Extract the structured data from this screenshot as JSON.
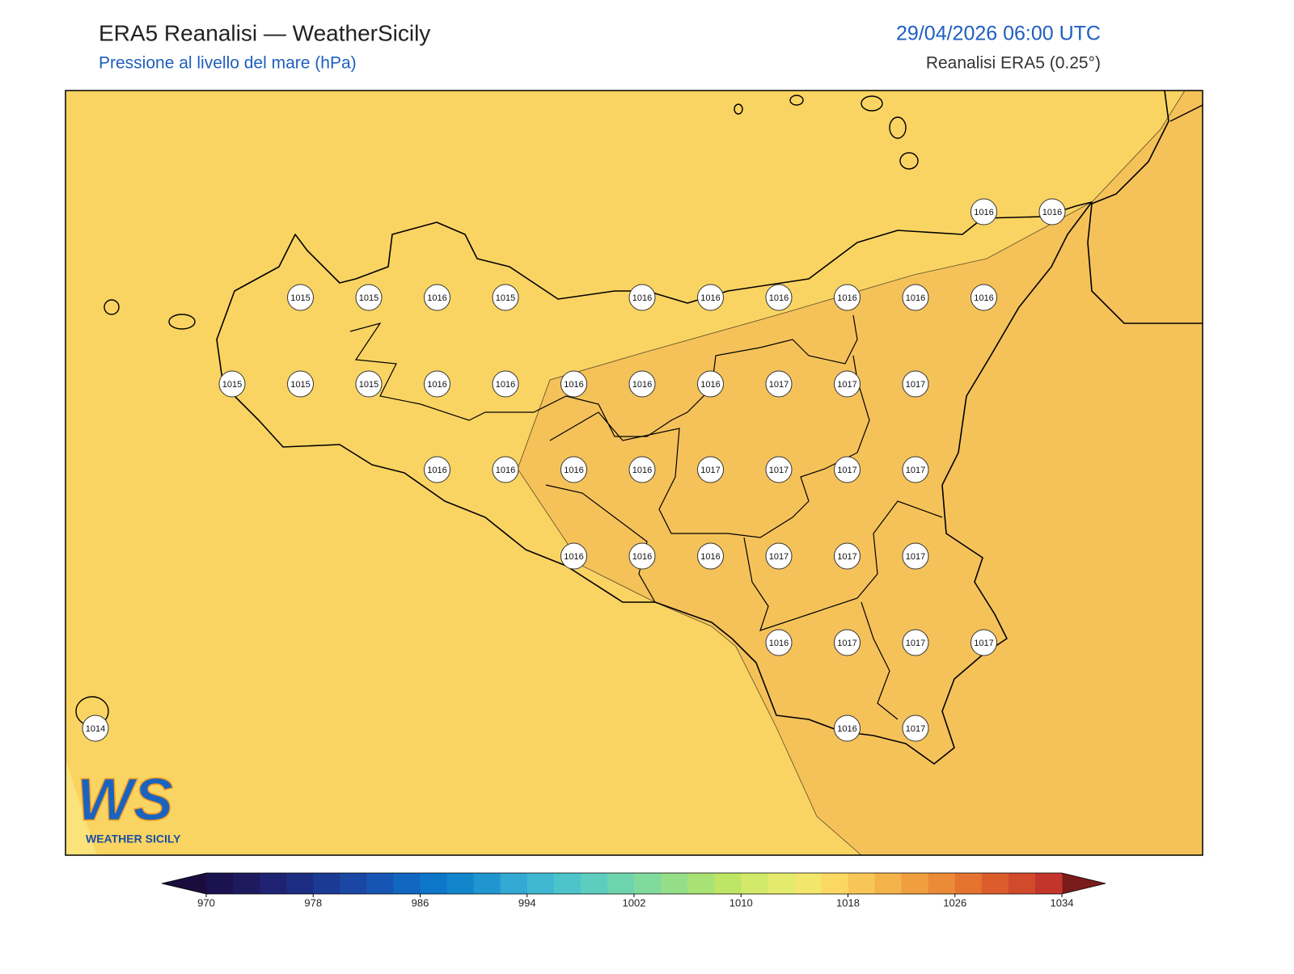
{
  "header": {
    "title": "ERA5 Reanalisi — WeatherSicily",
    "subtitle": "Pressione al livello del mare (hPa)",
    "datetime": "29/04/2026 06:00 UTC",
    "source": "Reanalisi ERA5 (0.25°)"
  },
  "pressure_labels": [
    [
      1016,
      1016
    ],
    [
      1015,
      1015,
      1016,
      1015,
      1016,
      1016,
      1016,
      1016,
      1016,
      1016
    ],
    [
      1015,
      1015,
      1015,
      1016,
      1016,
      1016,
      1016,
      1016,
      1017,
      1017,
      1017
    ],
    [
      1016,
      1016,
      1016,
      1016,
      1017,
      1017,
      1017,
      1017
    ],
    [
      1016,
      1016,
      1016,
      1017,
      1017,
      1017
    ],
    [
      1016,
      1017,
      1017,
      1017
    ],
    [
      1014,
      1016,
      1017
    ]
  ],
  "colorbar": {
    "ticks": [
      970,
      978,
      986,
      994,
      1002,
      1010,
      1018,
      1026,
      1034
    ],
    "colors": [
      "#1b1250",
      "#1d1a5e",
      "#1e2270",
      "#1c2d82",
      "#1b3a93",
      "#1a47a3",
      "#1656b2",
      "#1166bf",
      "#0d76c8",
      "#1186cd",
      "#2096d1",
      "#33a8d3",
      "#40b8d2",
      "#4dc4ca",
      "#5ccdbe",
      "#6dd4ae",
      "#80da9c",
      "#95de88",
      "#a9e274",
      "#bee565",
      "#d2e96a",
      "#e3ea6e",
      "#f3e66c",
      "#fbd862",
      "#f7c656",
      "#f4b24a",
      "#f09e3f",
      "#eb8a37",
      "#e57330",
      "#dc5c2c",
      "#d14a2c",
      "#c3352b"
    ],
    "under_color": "#1a0d3e",
    "over_color": "#7a1c1a"
  },
  "logo": {
    "mark": "WS",
    "name": "WEATHER SICILY"
  }
}
